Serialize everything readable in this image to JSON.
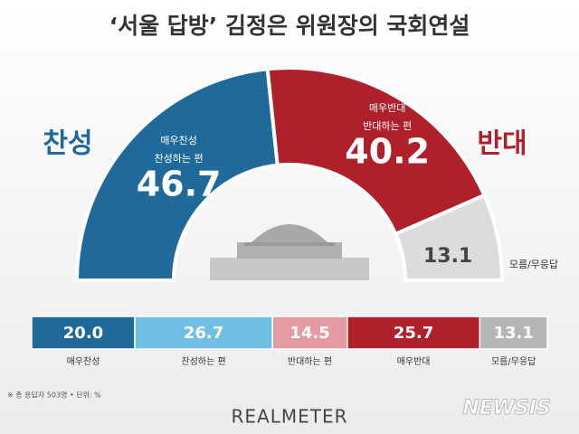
{
  "chart_data": [
    {
      "type": "half-donut",
      "title": "‘서울 답방’ 김정은 위원장의 국회연설",
      "categories": [
        "찬성",
        "반대",
        "모름/무응답"
      ],
      "values": [
        46.7,
        40.2,
        13.1
      ],
      "inner_labels": [
        [
          "매우찬성",
          "찬성하는 편"
        ],
        [
          "매우반대",
          "반대하는 편"
        ],
        null
      ],
      "colors": [
        "#1f6a9a",
        "#b0202a",
        "#dcdcdc"
      ]
    },
    {
      "type": "bar",
      "stacked": true,
      "orientation": "horizontal",
      "categories": [
        "매우찬성",
        "찬성하는 편",
        "반대하는 편",
        "매우반대",
        "모름/무응답"
      ],
      "values": [
        20.0,
        26.7,
        14.5,
        25.7,
        13.1
      ],
      "value_labels": [
        "20.0",
        "26.7",
        "14.5",
        "25.7",
        "13.1"
      ],
      "colors": [
        "#1f6a9a",
        "#6fbfe4",
        "#e39aa0",
        "#b0202a",
        "#b5b5b5"
      ]
    }
  ],
  "footnote": "※ 총 응답자 503명 • 단위: %",
  "brand": "REALMETER",
  "watermark": "NEWSIS"
}
